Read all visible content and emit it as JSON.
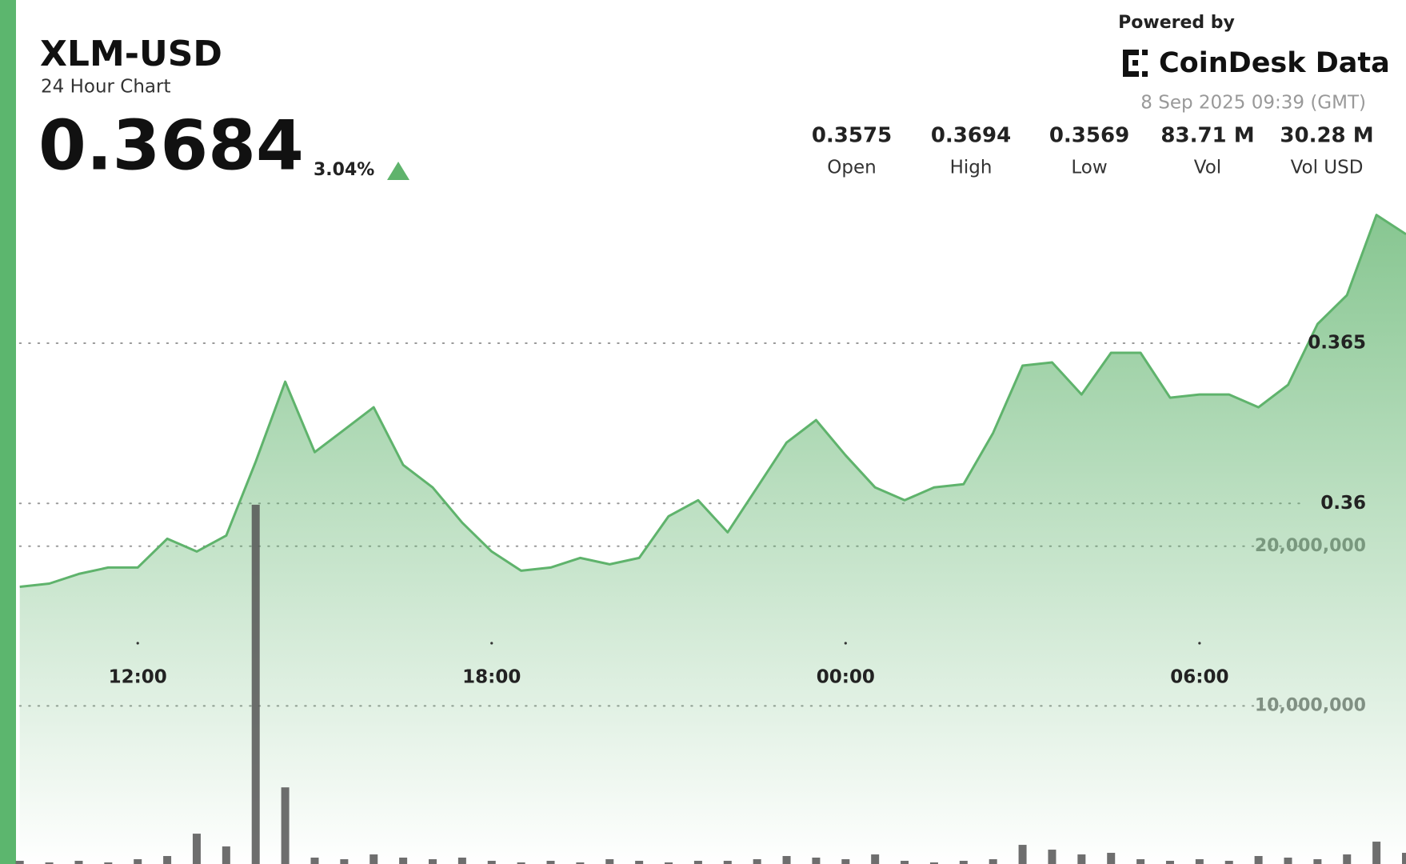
{
  "header": {
    "title": "XLM-USD",
    "subtitle": "24 Hour Chart",
    "price": "0.3684",
    "change": {
      "value": 3.04,
      "label": "3.04%"
    },
    "powered": "Powered by",
    "brand": "CoinDesk Data",
    "timestamp": "8 Sep 2025 09:39 (GMT)",
    "stats": [
      {
        "value": "0.3575",
        "label": "Open"
      },
      {
        "value": "0.3694",
        "label": "High"
      },
      {
        "value": "0.3569",
        "label": "Low"
      },
      {
        "value": "83.71 M",
        "label": "Vol"
      },
      {
        "value": "30.28 M",
        "label": "Vol USD"
      }
    ]
  },
  "chart_data": {
    "type": "line",
    "categories": [
      null,
      null,
      null,
      null,
      "12:00",
      null,
      null,
      null,
      null,
      null,
      null,
      null,
      null,
      null,
      null,
      null,
      "18:00",
      null,
      null,
      null,
      null,
      null,
      null,
      null,
      null,
      null,
      null,
      null,
      "00:00",
      null,
      null,
      null,
      null,
      null,
      null,
      null,
      null,
      null,
      null,
      null,
      "06:00",
      null,
      null,
      null,
      null,
      null,
      null,
      null
    ],
    "series": [
      {
        "color": "#5fb36c",
        "values": [
          0.3574,
          0.3575,
          0.3578,
          0.358,
          0.358,
          0.3589,
          0.3585,
          0.359,
          0.3613,
          0.3638,
          0.3616,
          0.3623,
          0.363,
          0.3612,
          0.3605,
          0.3594,
          0.3585,
          0.3579,
          0.358,
          0.3583,
          0.3581,
          0.3583,
          0.3596,
          0.3601,
          0.3591,
          0.3605,
          0.3619,
          0.3626,
          0.3615,
          0.3605,
          0.3601,
          0.3605,
          0.3606,
          0.3622,
          0.3643,
          0.3644,
          0.3634,
          0.3647,
          0.3647,
          0.3633,
          0.3634,
          0.3634,
          0.363,
          0.3637,
          0.3656,
          0.3665,
          0.369,
          0.3684
        ]
      },
      {
        "type": "bar",
        "axis": "y2",
        "color": "#555555",
        "values": [
          300000,
          200000,
          300000,
          200000,
          400000,
          600000,
          2000000,
          1200000,
          22600000,
          4900000,
          500000,
          400000,
          700000,
          500000,
          400000,
          500000,
          300000,
          200000,
          300000,
          200000,
          400000,
          300000,
          200000,
          300000,
          300000,
          400000,
          600000,
          500000,
          400000,
          700000,
          300000,
          200000,
          300000,
          400000,
          1300000,
          1000000,
          700000,
          800000,
          400000,
          300000,
          400000,
          300000,
          600000,
          500000,
          400000,
          700000,
          1500000,
          800000
        ]
      }
    ],
    "ylim": [
      0.3487,
      0.3697
    ],
    "yticks": [
      0.36,
      0.365
    ],
    "y2lim": [
      0,
      42150000
    ],
    "y2ticks": [
      {
        "value": 10000000,
        "label": "10,000,000"
      },
      {
        "value": 20000000,
        "label": "20,000,000"
      }
    ],
    "grid": true
  }
}
